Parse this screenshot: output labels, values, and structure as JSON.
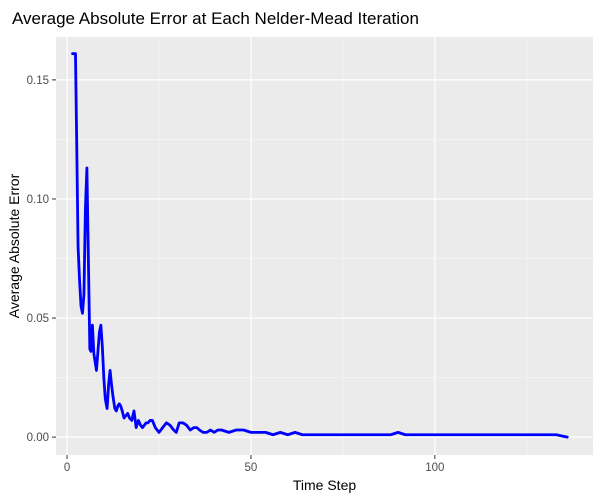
{
  "chart_data": {
    "type": "line",
    "title": "Average Absolute Error at Each Nelder-Mead Iteration",
    "xlabel": "Time Step",
    "ylabel": "Average Absolute Error",
    "xlim": [
      -3,
      143
    ],
    "ylim": [
      -0.0075,
      0.168
    ],
    "x_ticks": [
      0,
      50,
      100
    ],
    "x_tick_labels": [
      "0",
      "50",
      "100"
    ],
    "y_ticks": [
      0.0,
      0.05,
      0.1,
      0.15
    ],
    "y_tick_labels": [
      "0.00",
      "0.05",
      "0.10",
      "0.15"
    ],
    "grid": true,
    "legend": "none",
    "colors": {
      "panel_background": "#ebebeb",
      "grid_major": "#ffffff",
      "grid_minor": "#f4f4f4",
      "line": "#0000ff"
    },
    "series": [
      {
        "x": [
          1.5,
          2.3,
          2.6,
          3.0,
          3.4,
          3.8,
          4.2,
          4.6,
          5.0,
          5.4,
          5.8,
          6.2,
          6.5,
          6.9,
          7.3,
          7.7,
          8.0,
          8.4,
          8.8,
          9.2,
          9.6,
          10.0,
          10.4,
          10.9,
          11.3,
          11.7,
          12.1,
          12.5,
          13.0,
          13.4,
          13.8,
          14.2,
          14.6,
          15.0,
          15.5,
          16.0,
          16.5,
          17.0,
          17.6,
          18.2,
          18.8,
          19.4,
          20.0,
          20.5,
          21.0,
          21.5,
          22.0,
          22.6,
          23.2,
          24.0,
          25.0,
          26.0,
          27.0,
          28.0,
          29.0,
          29.7,
          30.5,
          31.5,
          32.5,
          33.5,
          34.5,
          35.3,
          36.0,
          37.0,
          38.0,
          39.0,
          40.0,
          41.0,
          42.0,
          44.0,
          46.0,
          48.0,
          50.0,
          52.0,
          54.0,
          56.0,
          58.0,
          60.0,
          62.0,
          64.0,
          66.0,
          68.0,
          70.0,
          72.0,
          74.0,
          76.0,
          78.0,
          80.0,
          82.0,
          84.0,
          86.0,
          88.0,
          90.0,
          92.0,
          94.0,
          96.0,
          98.0,
          100.0,
          103.0,
          106.0,
          109.0,
          112.0,
          115.0,
          118.0,
          121.0,
          124.0,
          127.0,
          130.0,
          133.0,
          136.0
        ],
        "values": [
          0.161,
          0.161,
          0.127,
          0.08,
          0.066,
          0.055,
          0.052,
          0.06,
          0.096,
          0.113,
          0.075,
          0.037,
          0.036,
          0.047,
          0.035,
          0.031,
          0.028,
          0.036,
          0.044,
          0.047,
          0.038,
          0.025,
          0.016,
          0.012,
          0.022,
          0.028,
          0.022,
          0.017,
          0.012,
          0.011,
          0.013,
          0.014,
          0.013,
          0.011,
          0.008,
          0.009,
          0.01,
          0.008,
          0.007,
          0.011,
          0.004,
          0.007,
          0.005,
          0.004,
          0.005,
          0.006,
          0.006,
          0.007,
          0.007,
          0.004,
          0.002,
          0.004,
          0.006,
          0.005,
          0.003,
          0.002,
          0.006,
          0.006,
          0.005,
          0.003,
          0.004,
          0.004,
          0.003,
          0.002,
          0.002,
          0.003,
          0.002,
          0.003,
          0.003,
          0.002,
          0.003,
          0.003,
          0.002,
          0.002,
          0.002,
          0.001,
          0.002,
          0.001,
          0.002,
          0.001,
          0.001,
          0.001,
          0.001,
          0.001,
          0.001,
          0.001,
          0.001,
          0.001,
          0.001,
          0.001,
          0.001,
          0.001,
          0.002,
          0.001,
          0.001,
          0.001,
          0.001,
          0.001,
          0.001,
          0.001,
          0.001,
          0.001,
          0.001,
          0.001,
          0.001,
          0.001,
          0.001,
          0.001,
          0.001,
          0.0
        ]
      }
    ]
  }
}
